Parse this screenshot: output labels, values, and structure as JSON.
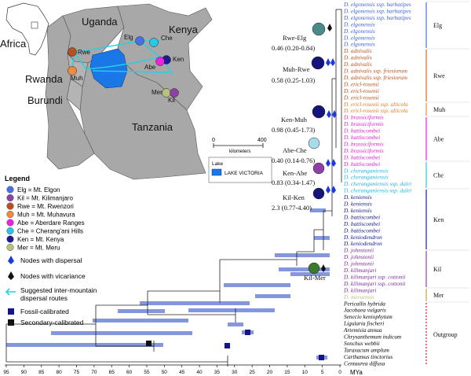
{
  "map": {
    "country_labels": {
      "uganda": "Uganda",
      "kenya": "Kenya",
      "tanzania": "Tanzania",
      "rwanda": "Rwanda",
      "burundi": "Burundi",
      "africa": "Africa"
    },
    "site_labels": {
      "elg": "Elg",
      "che": "Che",
      "rwe": "Rwe",
      "ken": "Ken",
      "abe": "Abe",
      "muh": "Muh",
      "mer": "Mer",
      "kil": "Kil"
    },
    "scale_start": "0",
    "scale_end": "400",
    "scale_unit": "kilometers",
    "lake_heading": "Lake",
    "lake_name": "LAKE VICTORIA"
  },
  "legend": {
    "title": "Legend",
    "items": [
      {
        "label": "Elg = Mt. Elgon",
        "color": "#4472e6"
      },
      {
        "label": "Kil = Mt. Kilimanjaro",
        "color": "#8e3fa8"
      },
      {
        "label": "Rwe = Mt. Rwenzori",
        "color": "#b8501f"
      },
      {
        "label": "Muh = Mt. Muhavura",
        "color": "#f08a3c"
      },
      {
        "label": "Abe = Aberdare Ranges",
        "color": "#f020e0"
      },
      {
        "label": "Che = Cherang'ani Hills",
        "color": "#28c8e8"
      },
      {
        "label": "Ken = Mt. Kenya",
        "color": "#1a1a9a"
      },
      {
        "label": "Mer = Mt. Meru",
        "color": "#b8c27a"
      }
    ],
    "dispersal": "Nodes with dispersal",
    "vicariance": "Nodes with vicariance",
    "routes_1": "Suggested inter-mountain",
    "routes_2": "dispersal routes",
    "fossil": "Fossil-calibrated",
    "secondary": "Secondary-calibrated"
  },
  "nodes": [
    {
      "name": "Rwe-Elg",
      "value": "0.46 (0.20-0.84)"
    },
    {
      "name": "Muh-Rwe",
      "value": "0.58 (0.25-1.03)"
    },
    {
      "name": "Ken-Muh",
      "value": "0.98 (0.45-1.73)"
    },
    {
      "name": "Abe-Che",
      "value": "0.40 (0.14-0.76)"
    },
    {
      "name": "Ken-Abe",
      "value": "0.83 (0.34-1.47)"
    },
    {
      "name": "Kil-Ken",
      "value": "2.3 (0.77-4.40)"
    },
    {
      "name": "Kil-Mer",
      "value": ""
    }
  ],
  "taxa": [
    {
      "name": "D. elgonensis ssp. barbatipes",
      "color": "#3a5fd9"
    },
    {
      "name": "D. elgonensis ssp. barbatipes",
      "color": "#3a5fd9"
    },
    {
      "name": "D. elgonensis ssp. barbatipes",
      "color": "#3a5fd9"
    },
    {
      "name": "D. elgonensis",
      "color": "#3a5fd9"
    },
    {
      "name": "D. elgonensis",
      "color": "#3a5fd9"
    },
    {
      "name": "D. elgonensis",
      "color": "#3a5fd9"
    },
    {
      "name": "D. elgonensis",
      "color": "#3a5fd9"
    },
    {
      "name": "D. adnivalis",
      "color": "#c0501c"
    },
    {
      "name": "D. adnivalis",
      "color": "#c0501c"
    },
    {
      "name": "D. adnivalis",
      "color": "#c0501c"
    },
    {
      "name": "D. adnivalis ssp. friesiorum",
      "color": "#c0501c"
    },
    {
      "name": "D. adnivalis ssp. friesiorum",
      "color": "#c0501c"
    },
    {
      "name": "D. ericl-rosenii",
      "color": "#c0501c"
    },
    {
      "name": "D. ericl-rosenii",
      "color": "#c0501c"
    },
    {
      "name": "D. ericl-rosenii",
      "color": "#c0501c"
    },
    {
      "name": "D. ericl-rosenii ssp. alticola",
      "color": "#e87b2a"
    },
    {
      "name": "D. ericl-rosenii ssp. alticola",
      "color": "#e87b2a"
    },
    {
      "name": "D. brassiciformis",
      "color": "#e020d0"
    },
    {
      "name": "D. brassiciformis",
      "color": "#e020d0"
    },
    {
      "name": "D. battiscombei",
      "color": "#e020d0"
    },
    {
      "name": "D. battiscombei",
      "color": "#e020d0"
    },
    {
      "name": "D. brassiciformis",
      "color": "#e020d0"
    },
    {
      "name": "D. brassiciformis",
      "color": "#e020d0"
    },
    {
      "name": "D. battiscombei",
      "color": "#e020d0"
    },
    {
      "name": "D. battiscombei",
      "color": "#e020d0"
    },
    {
      "name": "D. cheranganiensis",
      "color": "#1eb8e0"
    },
    {
      "name": "D. cheranganiensis",
      "color": "#1eb8e0"
    },
    {
      "name": "D. cheranganiensis ssp. dalei",
      "color": "#1eb8e0"
    },
    {
      "name": "D. cheranganiensis ssp. dalei",
      "color": "#1eb8e0"
    },
    {
      "name": "D. keniensis",
      "color": "#14148c"
    },
    {
      "name": "D. keniensis",
      "color": "#14148c"
    },
    {
      "name": "D. keniensis",
      "color": "#14148c"
    },
    {
      "name": "D. battiscombei",
      "color": "#14148c"
    },
    {
      "name": "D. battiscombei",
      "color": "#14148c"
    },
    {
      "name": "D. battiscombei",
      "color": "#14148c"
    },
    {
      "name": "D. keniodendron",
      "color": "#14148c"
    },
    {
      "name": "D. keniodendron",
      "color": "#14148c"
    },
    {
      "name": "D. johnstonii",
      "color": "#7a2a9a"
    },
    {
      "name": "D. johnstonii",
      "color": "#7a2a9a"
    },
    {
      "name": "D. johnstonii",
      "color": "#7a2a9a"
    },
    {
      "name": "D. kilimanjari",
      "color": "#7a2a9a"
    },
    {
      "name": "D. kilimanjari ssp. cottonii",
      "color": "#7a2a9a"
    },
    {
      "name": "D. kilimanjari ssp. cottonii",
      "color": "#7a2a9a"
    },
    {
      "name": "D. kilimanjari",
      "color": "#7a2a9a"
    },
    {
      "name": "D. meruensis",
      "color": "#b9c27a"
    },
    {
      "name": "Pericallis hybrida",
      "color": "#000000"
    },
    {
      "name": "Jacobaea vulgaris",
      "color": "#000000"
    },
    {
      "name": "Senecio keniophytum",
      "color": "#000000"
    },
    {
      "name": "Ligularia fischeri",
      "color": "#000000"
    },
    {
      "name": "Artemisia annua",
      "color": "#000000"
    },
    {
      "name": "Chrysanthemum indicum",
      "color": "#000000"
    },
    {
      "name": "Sonchus webbii",
      "color": "#000000"
    },
    {
      "name": "Taraxacum amplum",
      "color": "#000000"
    },
    {
      "name": "Carthamus tinctorius",
      "color": "#000000"
    },
    {
      "name": "Centaurea diffusa",
      "color": "#000000"
    }
  ],
  "groups": [
    {
      "label": "Elg",
      "color": "#4472e6"
    },
    {
      "label": "Rwe",
      "color": "#e06020"
    },
    {
      "label": "Muh",
      "color": "#f08a3c"
    },
    {
      "label": "Abe",
      "color": "#f020e0"
    },
    {
      "label": "Che",
      "color": "#28c8e8"
    },
    {
      "label": "Ken",
      "color": "#1a1a9a"
    },
    {
      "label": "Kil",
      "color": "#8e3fa8"
    },
    {
      "label": "Mer",
      "color": "#c8a040"
    },
    {
      "label": "Outgroup",
      "color": "#e02020"
    }
  ],
  "axis": {
    "ticks": [
      "95",
      "90",
      "85",
      "80",
      "75",
      "70",
      "65",
      "60",
      "55",
      "50",
      "45",
      "40",
      "35",
      "30",
      "25",
      "20",
      "15",
      "10",
      "5",
      "0"
    ],
    "unit": "MYa"
  }
}
